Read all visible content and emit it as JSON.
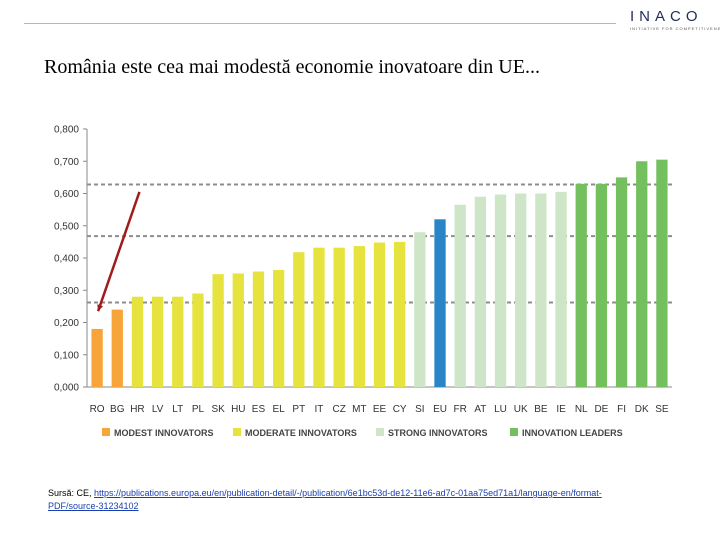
{
  "header": {
    "logo_text": "INACO",
    "logo_tagline": "INITIATIVE FOR COMPETITIVENESS"
  },
  "slide": {
    "title": "România este cea mai modestă economie inovatoare din UE..."
  },
  "chart_data": {
    "type": "bar",
    "title": "",
    "categories": [
      "RO",
      "BG",
      "HR",
      "LV",
      "LT",
      "PL",
      "SK",
      "HU",
      "ES",
      "EL",
      "PT",
      "IT",
      "CZ",
      "MT",
      "EE",
      "CY",
      "SI",
      "EU",
      "FR",
      "AT",
      "LU",
      "UK",
      "BE",
      "IE",
      "NL",
      "DE",
      "FI",
      "DK",
      "SE"
    ],
    "values": [
      0.18,
      0.24,
      0.28,
      0.28,
      0.28,
      0.29,
      0.35,
      0.352,
      0.358,
      0.363,
      0.418,
      0.432,
      0.432,
      0.437,
      0.448,
      0.45,
      0.48,
      0.52,
      0.565,
      0.59,
      0.597,
      0.6,
      0.6,
      0.605,
      0.63,
      0.63,
      0.65,
      0.7,
      0.705
    ],
    "groups": [
      "modest",
      "modest",
      "moderate",
      "moderate",
      "moderate",
      "moderate",
      "moderate",
      "moderate",
      "moderate",
      "moderate",
      "moderate",
      "moderate",
      "moderate",
      "moderate",
      "moderate",
      "moderate",
      "strong",
      "eu",
      "strong",
      "strong",
      "strong",
      "strong",
      "strong",
      "strong",
      "leader",
      "leader",
      "leader",
      "leader",
      "leader"
    ],
    "colors": {
      "modest": "#f7a43a",
      "moderate": "#e6e33f",
      "strong": "#cfe5c8",
      "eu": "#2a84c8",
      "leader": "#74c05f"
    },
    "ylim": [
      0,
      0.8
    ],
    "yticks": [
      "0,000",
      "0,100",
      "0,200",
      "0,300",
      "0,400",
      "0,500",
      "0,600",
      "0,700",
      "0,800"
    ],
    "yticks_values": [
      0,
      0.1,
      0.2,
      0.3,
      0.4,
      0.5,
      0.6,
      0.7,
      0.8
    ],
    "thresholds": [
      0.262,
      0.468,
      0.628
    ],
    "legend": [
      {
        "label": "MODEST INNOVATORS",
        "group": "modest"
      },
      {
        "label": "MODERATE INNOVATORS",
        "group": "moderate"
      },
      {
        "label": "STRONG INNOVATORS",
        "group": "strong"
      },
      {
        "label": "INNOVATION LEADERS",
        "group": "leader"
      }
    ],
    "annotation_arrow": {
      "from_value": 0.605,
      "to_value": 0.235,
      "color": "#a01c1c"
    }
  },
  "source": {
    "prefix": "Sursă: CE, ",
    "link": "https://publications.europa.eu/en/publication-detail/-/publication/6e1bc53d-de12-11e6-ad7c-01aa75ed71a1/language-en/format-PDF/source-31234102"
  }
}
